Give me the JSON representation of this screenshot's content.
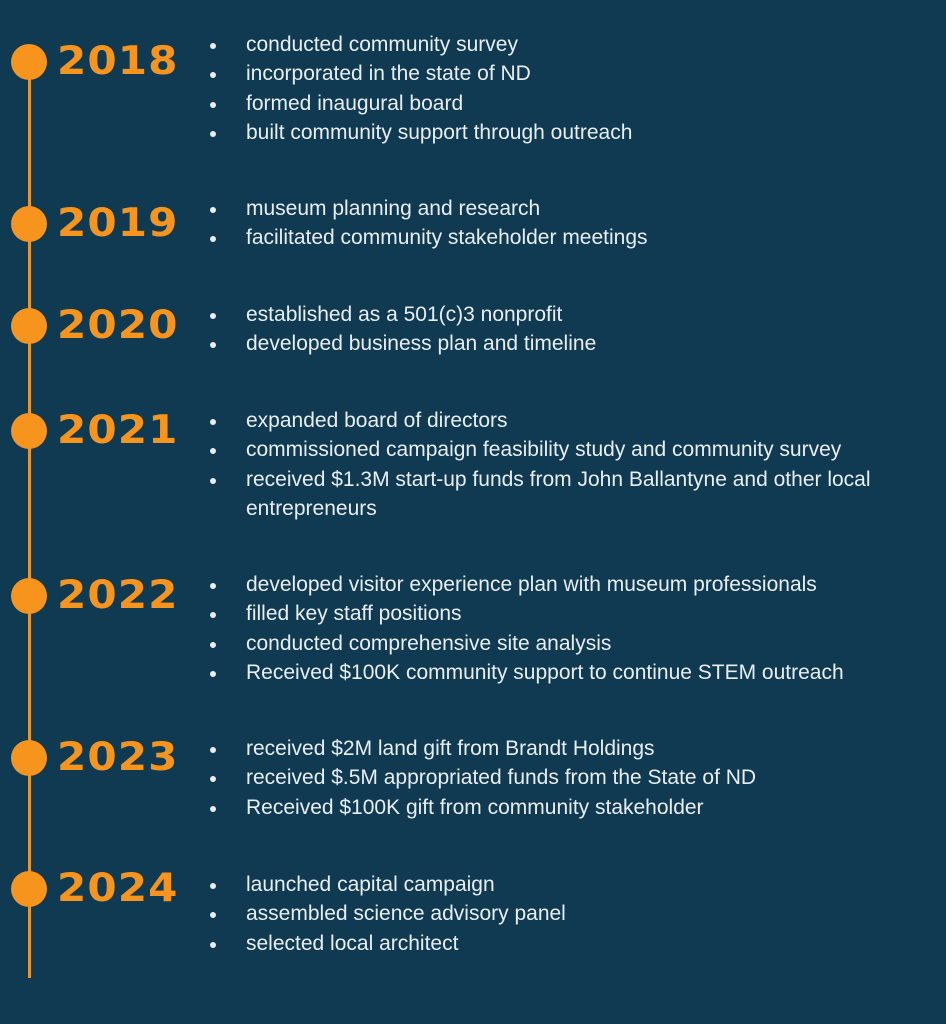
{
  "colors": {
    "background": "#0f3a52",
    "accent": "#f7941d",
    "text": "#e9eef2"
  },
  "timeline": [
    {
      "year": "2018",
      "items": [
        "conducted community survey",
        "incorporated in the state of ND",
        "formed inaugural board",
        "built community support through outreach"
      ]
    },
    {
      "year": "2019",
      "items": [
        "museum planning and research",
        "facilitated community stakeholder meetings"
      ]
    },
    {
      "year": "2020",
      "items": [
        "established as a 501(c)3 nonprofit",
        "developed business plan and timeline"
      ]
    },
    {
      "year": "2021",
      "items": [
        "expanded board of directors",
        "commissioned campaign feasibility study and community survey",
        "received $1.3M start-up funds from John Ballantyne and other local entrepreneurs"
      ]
    },
    {
      "year": "2022",
      "items": [
        "developed visitor experience plan with museum professionals",
        "filled key staff positions",
        "conducted comprehensive site analysis",
        "Received $100K community support to continue STEM outreach"
      ]
    },
    {
      "year": "2023",
      "items": [
        "received $2M land gift from Brandt Holdings",
        "received $.5M appropriated funds from the State of ND",
        "Received $100K gift from community stakeholder"
      ]
    },
    {
      "year": "2024",
      "items": [
        "launched capital campaign",
        "assembled science advisory panel",
        "selected local architect"
      ]
    }
  ]
}
